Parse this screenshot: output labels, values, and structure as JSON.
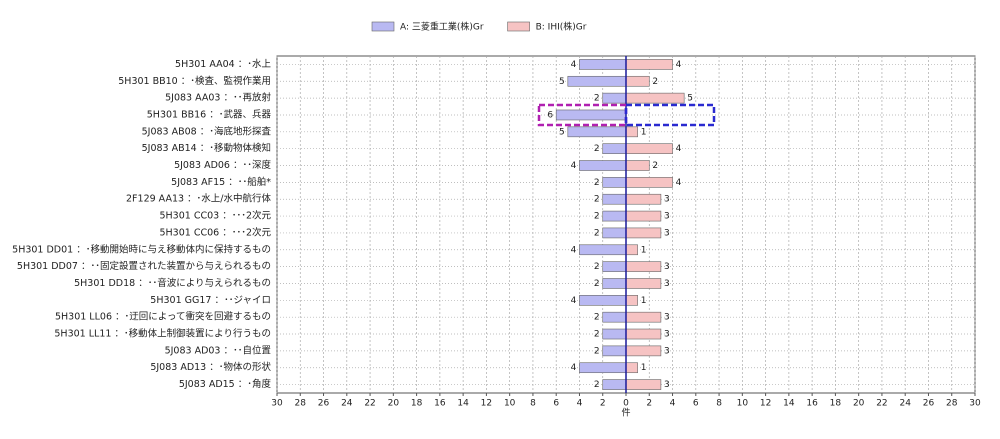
{
  "chart_data": {
    "type": "butterfly-bar",
    "x_label": "件",
    "categories": [
      "5H301 AA04 ：･水上",
      "5H301 BB10 ：･検査、監視作業用",
      "5J083 AA03 ：･･再放射",
      "5H301 BB16 ：･武器、兵器",
      "5J083 AB08 ：･海底地形探査",
      "5J083 AB14 ：･移動物体検知",
      "5J083 AD06 ：･･深度",
      "5J083 AF15 ：･･船舶*",
      "2F129 AA13 ：･水上/水中航行体",
      "5H301 CC03 ：･･･2次元",
      "5H301 CC06 ：･･･2次元",
      "5H301 DD01 ：･移動開始時に与え移動体内に保持するもの",
      "5H301 DD07 ：･･固定設置された装置から与えられるもの",
      "5H301 DD18 ：･･音波により与えられるもの",
      "5H301 GG17 ：･･ジャイロ",
      "5H301 LL06 ：･迂回によって衝突を回避するもの",
      "5H301 LL11 ：･移動体上制御装置により行うもの",
      "5J083 AD03 ：･･自位置",
      "5J083 AD13 ：･物体の形状",
      "5J083 AD15 ：･角度"
    ],
    "series": [
      {
        "name": "A: 三菱重工業(株)Gr",
        "color": "#b9b9f2",
        "side": "left",
        "values": [
          4,
          5,
          2,
          6,
          5,
          2,
          4,
          2,
          2,
          2,
          2,
          4,
          2,
          2,
          4,
          2,
          2,
          2,
          4,
          2
        ]
      },
      {
        "name": "B: IHI(株)Gr",
        "color": "#f6c3c3",
        "side": "right",
        "values": [
          4,
          2,
          5,
          null,
          1,
          4,
          2,
          4,
          3,
          3,
          3,
          1,
          3,
          3,
          1,
          3,
          3,
          3,
          1,
          3
        ]
      }
    ],
    "xlim": [
      -30,
      30
    ],
    "xticks": [
      {
        "value": -30,
        "label": "30"
      },
      {
        "value": -28,
        "label": "28"
      },
      {
        "value": -26,
        "label": "26"
      },
      {
        "value": -24,
        "label": "24"
      },
      {
        "value": -22,
        "label": "22"
      },
      {
        "value": -20,
        "label": "20"
      },
      {
        "value": -18,
        "label": "18"
      },
      {
        "value": -16,
        "label": "16"
      },
      {
        "value": -14,
        "label": "14"
      },
      {
        "value": -12,
        "label": "12"
      },
      {
        "value": -10,
        "label": "10"
      },
      {
        "value": -8,
        "label": "8"
      },
      {
        "value": -6,
        "label": "6"
      },
      {
        "value": -4,
        "label": "4"
      },
      {
        "value": -2,
        "label": "2"
      },
      0,
      2,
      4,
      6,
      8,
      10,
      12,
      14,
      16,
      18,
      20,
      22,
      24,
      26,
      28,
      30
    ],
    "grid": true
  }
}
